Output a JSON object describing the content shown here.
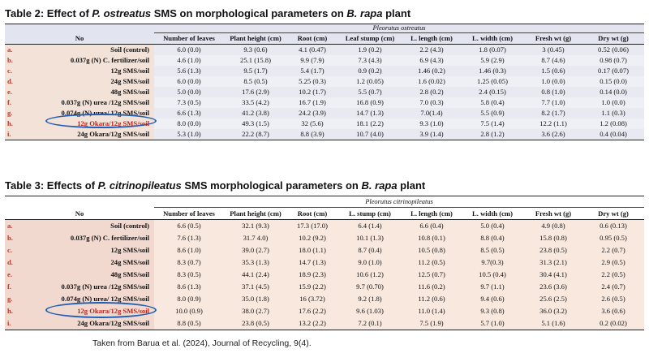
{
  "tables": [
    {
      "caption": {
        "prefix": "Table 2: Effect of ",
        "species": "P. ostreatus",
        "middle": " SMS on morphological parameters on ",
        "plant": "B. rapa",
        "suffix": " plant"
      },
      "group_header": "Pleorutus ostreatus",
      "columns": [
        "No",
        "Number of leaves",
        "Plant height   (cm)",
        "Root (cm)",
        "Leaf stump (cm)",
        "L. length (cm)",
        "L. width (cm)",
        "Fresh wt (g)",
        "Dry wt (g)"
      ],
      "rows": [
        {
          "label": "a.",
          "name": "Soil (control)",
          "values": [
            "6.0 (0.0)",
            "9.3 (0.6)",
            "4.1 (0.47)",
            "1.9 (0.2)",
            "2.2 (4.3)",
            "1.8 (0.07)",
            "3 (0.45)",
            "0.52 (0.06)"
          ]
        },
        {
          "label": "b.",
          "name": "0.037g (N) C. fertilizer/soil",
          "values": [
            "4.6 (1.0)",
            "25.1 (15.8)",
            "9.9 (7.9)",
            "7.3 (4.3)",
            "6.9 (4.3)",
            "5.9 (2.9)",
            "8.7 (4.6)",
            "0.98 (0.7)"
          ]
        },
        {
          "label": "c.",
          "name": "12g SMS/soil",
          "values": [
            "5.6 (1.3)",
            "9.5 (1.7)",
            "5.4 (1.7)",
            "0.9 (0.2)",
            "1.46 (0.2)",
            "1.46 (0.3)",
            "1.5 (0.6)",
            "0.17 (0.07)"
          ]
        },
        {
          "label": "d.",
          "name": "24g SMS/soil",
          "values": [
            "6.0 (0.0)",
            "8.5 (0.5)",
            "5.25 (0.3)",
            "1.2 (0.05)",
            "1.6 (0.02)",
            "1.25 (0.05)",
            "1.0 (0.0)",
            "0.15 (0.0)"
          ]
        },
        {
          "label": "e.",
          "name": "48g SMS/soil",
          "values": [
            "5.0 (0.0)",
            "17.6 (2.9)",
            "10.2 (1.7)",
            "5.5 (0.7)",
            "2.8 (0.2)",
            "2.4 (0.15)",
            "0.8 (1.0)",
            "0.14 (0.0)"
          ]
        },
        {
          "label": "f.",
          "name": "0.037g (N) urea /12g SMS/soil",
          "values": [
            "7.3 (0.5)",
            "33.5 (4.2)",
            "16.7 (1.9)",
            "16.8 (0.9)",
            "7.0 (0.3)",
            "5.8 (0.4)",
            "7.7 (1.0)",
            "1.0 (0.0)"
          ]
        },
        {
          "label": "g.",
          "name": "0.074g (N) urea/ 12g SMS/soil",
          "values": [
            "6.6 (1.3)",
            "41.2 (3.8)",
            "24.2 (3.9)",
            "14.7 (1.3)",
            "7.0(1.4)",
            "5.5 (0.9)",
            "8.2 (1.7)",
            "1.1 (0.3)"
          ]
        },
        {
          "label": "h.",
          "name": "12g Okara/12g SMS/soil",
          "values": [
            "8.0 (0.0)",
            "49.3 (1.5)",
            "32 (5.6)",
            "18.1 (2.2)",
            "9.3 (1.0)",
            "7.5 (1.4)",
            "12.2 (1.1)",
            "1.2 (0.08)"
          ],
          "highlighted": true
        },
        {
          "label": "i.",
          "name": "24g Okara/12g SMS/soil",
          "values": [
            "5.3 (1.0)",
            "22.2 (8.7)",
            "8.8 (3.9)",
            "10.7 (4.0)",
            "3.9 (1.4)",
            "2.8 (1.2)",
            "3.6 (2.6)",
            "0.4 (0.04)"
          ]
        }
      ]
    },
    {
      "caption": {
        "prefix": "Table 3: Effects of ",
        "species": "P. citrinopileatus",
        "middle": " SMS morphological parameters on ",
        "plant": "B. rapa",
        "suffix": " plant"
      },
      "group_header": "Pleorutus citrinopileatus",
      "columns": [
        "No",
        "Number of leaves",
        "Plant height   (cm)",
        "Root (cm)",
        "L. stump (cm)",
        "L. length (cm)",
        "L. width (cm)",
        "Fresh wt (g)",
        "Dry wt (g)"
      ],
      "rows": [
        {
          "label": "a.",
          "name": "Soil (control)",
          "values": [
            "6.6 (0.5)",
            "32.1 (9.3)",
            "17.3 (17.0)",
            "6.4 (1.4)",
            "6.6 (0.4)",
            "5.0 (0.4)",
            "4.9 (0.8)",
            "0.6 (0.13)"
          ]
        },
        {
          "label": "b.",
          "name": "0.037g (N) C. fertilizer/soil",
          "values": [
            "7.6 (1.3)",
            "31.7 4.0)",
            "10.2 (9.2)",
            "10.1 (1.3)",
            "10.8 (0.1)",
            "8.8 (0.4)",
            "15.8 (0.8)",
            "0.95 (0.5)"
          ]
        },
        {
          "label": "c.",
          "name": "12g SMS/soil",
          "values": [
            "8.6 (1.0)",
            "39.0 (2.7)",
            "18.0 (1.1)",
            "8.7 (0.4)",
            "10.5 (0.8)",
            "8.5 (0.5)",
            "23.8 (0.5)",
            "2.2 (0.7)"
          ]
        },
        {
          "label": "d.",
          "name": "24g SMS/soil",
          "values": [
            "8.3 (0.7)",
            "35.3 (1.3)",
            "14.7 (1.3)",
            "9.0 (1.0)",
            "11.2 (0.5)",
            "9.7(0.3)",
            "31.3 (2.1)",
            "2.9 (0.5)"
          ]
        },
        {
          "label": "e.",
          "name": "48g SMS/soil",
          "values": [
            "8.3 (0.5)",
            "44.1 (2.4)",
            "18.9 (2.3)",
            "10.6 (1.2)",
            "12.5 (0.7)",
            "10.5 (0.4)",
            "30.4 (4.1)",
            "2.2 (0.5)"
          ]
        },
        {
          "label": "f.",
          "name": "0.037g (N) urea /12g SMS/soil",
          "values": [
            "8.6 (1.3)",
            "37.1 (4.5)",
            "15.9 (2.2)",
            "9.7 (0.70)",
            "11.6 (0.2)",
            "9.7 (1.1)",
            "23.6 (3.6)",
            "2.4 (0.7)"
          ]
        },
        {
          "label": "g.",
          "name": "0.074g (N) urea/ 12g SMS/soil",
          "values": [
            "8.0 (0.9)",
            "35.0 (1.8)",
            "16 (3.72)",
            "9.2 (1.8)",
            "11.2 (0.6)",
            "9.4 (0.6)",
            "25.6 (2.5)",
            "2.6 (0.5)"
          ]
        },
        {
          "label": "h.",
          "name": "12g Okara/12g SMS/soil",
          "values": [
            "10.0 (0.9)",
            "38.0 (2.7)",
            "17.6 (2.2)",
            "9.6 (1.03)",
            "11.0 (1.4)",
            "9.3 (0.8)",
            "36.0 (3.2)",
            "3.6 (0.6)"
          ],
          "highlighted": true
        },
        {
          "label": "i.",
          "name": "24g Okara/12g SMS/soil",
          "values": [
            "8.8 (0.5)",
            "23.8 (0.5)",
            "13.2 (2.2)",
            "7.2 (0.1)",
            "7.5 (1.9)",
            "5.7 (1.0)",
            "5.1 (1.6)",
            "0.2 (0.02)"
          ]
        }
      ]
    }
  ],
  "source_note": "Taken from Barua et al. (2024), Journal of Recycling, 9(4).",
  "colors": {
    "highlight_circle": "#1f5fb5",
    "highlight_text": "#c0221a",
    "row_label": "#b03a2e",
    "table2_header_bg": "#e2e4ef",
    "table3_cell_bg": "#f8e8de"
  }
}
